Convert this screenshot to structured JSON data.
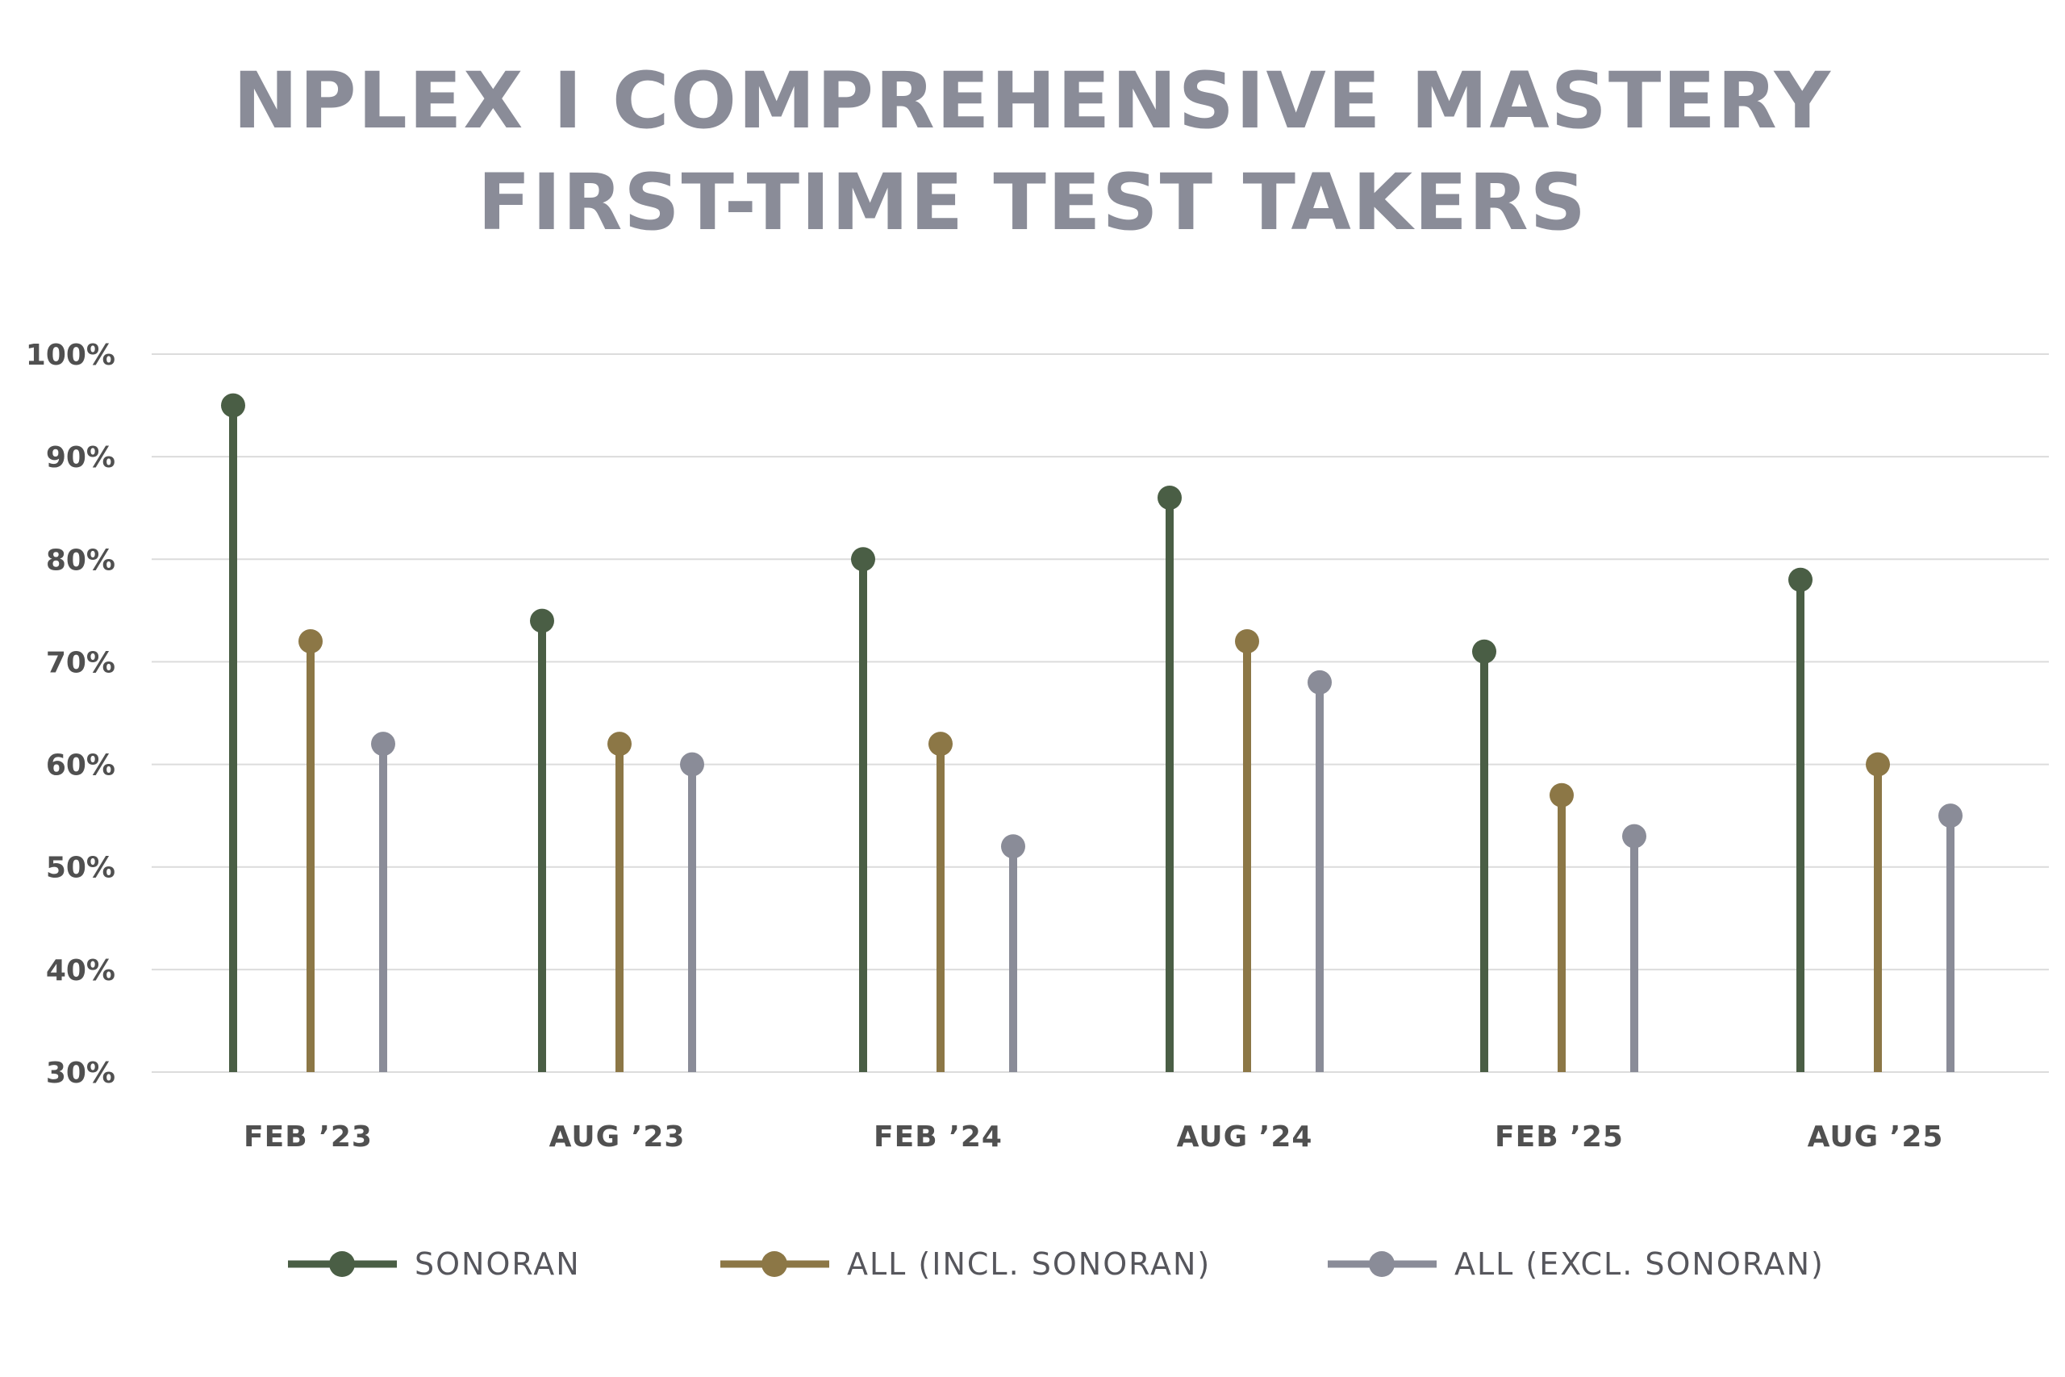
{
  "chart_data": {
    "type": "lollipop",
    "title_lines": [
      "NPLEX I COMPREHENSIVE MASTERY",
      "FIRST-TIME TEST TAKERS"
    ],
    "categories": [
      "FEB ’23",
      "AUG ’23",
      "FEB ’24",
      "AUG ’24",
      "FEB ’25",
      "AUG ’25"
    ],
    "series": [
      {
        "name": "SONORAN",
        "color": "#4a5e45",
        "values": [
          95,
          74,
          80,
          86,
          71,
          78
        ]
      },
      {
        "name": "ALL (INCL. SONORAN)",
        "color": "#8c7746",
        "values": [
          72,
          62,
          62,
          72,
          57,
          60
        ]
      },
      {
        "name": "ALL (EXCL. SONORAN)",
        "color": "#8a8c98",
        "values": [
          62,
          60,
          52,
          68,
          53,
          55
        ]
      }
    ],
    "y_ticks": [
      "100%",
      "90%",
      "80%",
      "70%",
      "60%",
      "50%",
      "40%",
      "30%"
    ],
    "ylim": [
      30,
      100
    ],
    "grid": true,
    "legend_position": "bottom"
  }
}
